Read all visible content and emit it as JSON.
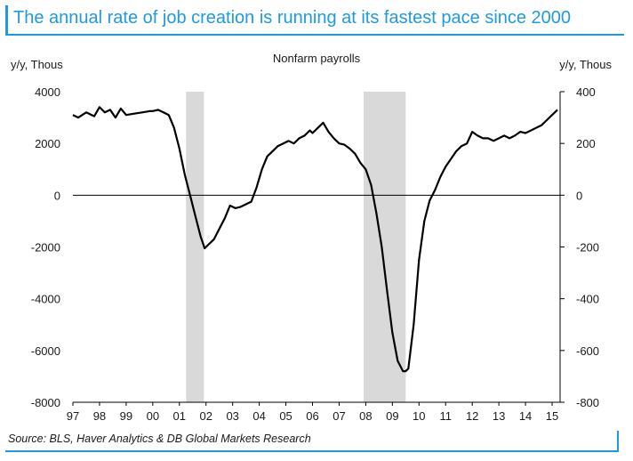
{
  "header": {
    "title": "The annual rate of job creation is running at its fastest pace since 2000"
  },
  "footer": {
    "source": "Source: BLS, Haver Analytics & DB Global Markets Research"
  },
  "colors": {
    "accent": "#1e9be0",
    "line": "#000000",
    "recession": "#d9d9d9"
  },
  "chart_data": {
    "type": "line",
    "title": "Nonfarm payrolls",
    "left_axis_label": "y/y, Thous",
    "right_axis_label": "y/y, Thous",
    "ylim_left": [
      -8000,
      4000
    ],
    "ylim_right": [
      -800,
      400
    ],
    "yticks_left": [
      "4000",
      "2000",
      "0",
      "-2000",
      "-4000",
      "-6000",
      "-8000"
    ],
    "yticks_right": [
      "400",
      "200",
      "0",
      "-200",
      "-400",
      "-600",
      "-800"
    ],
    "xlim": [
      1997.0,
      2015.3
    ],
    "xticks": [
      "97",
      "98",
      "99",
      "00",
      "01",
      "02",
      "03",
      "04",
      "05",
      "06",
      "07",
      "08",
      "09",
      "10",
      "11",
      "12",
      "13",
      "14",
      "15"
    ],
    "grid": false,
    "zero_line": true,
    "recessions": [
      [
        2001.25,
        2001.92
      ],
      [
        2007.92,
        2009.5
      ]
    ],
    "series": [
      {
        "x": [
          1997.0,
          1997.2,
          1997.5,
          1997.8,
          1998.0,
          1998.2,
          1998.4,
          1998.6,
          1998.8,
          1999.0,
          1999.3,
          1999.6,
          1999.9,
          2000.0,
          2000.2,
          2000.4,
          2000.6,
          2000.8,
          2001.0,
          2001.2,
          2001.4,
          2001.6,
          2001.8,
          2001.95,
          2002.1,
          2002.3,
          2002.5,
          2002.7,
          2002.9,
          2003.1,
          2003.3,
          2003.5,
          2003.7,
          2003.9,
          2004.1,
          2004.3,
          2004.5,
          2004.7,
          2004.9,
          2005.1,
          2005.3,
          2005.5,
          2005.7,
          2005.9,
          2006.0,
          2006.2,
          2006.4,
          2006.6,
          2006.8,
          2007.0,
          2007.2,
          2007.4,
          2007.6,
          2007.8,
          2008.0,
          2008.2,
          2008.4,
          2008.6,
          2008.8,
          2009.0,
          2009.2,
          2009.4,
          2009.5,
          2009.6,
          2009.8,
          2010.0,
          2010.2,
          2010.4,
          2010.6,
          2010.8,
          2011.0,
          2011.2,
          2011.4,
          2011.6,
          2011.8,
          2012.0,
          2012.2,
          2012.4,
          2012.6,
          2012.8,
          2013.0,
          2013.2,
          2013.4,
          2013.6,
          2013.8,
          2014.0,
          2014.2,
          2014.4,
          2014.6,
          2014.8,
          2015.0,
          2015.2
        ],
        "values": [
          3100,
          3000,
          3200,
          3050,
          3400,
          3200,
          3300,
          3000,
          3350,
          3100,
          3150,
          3200,
          3250,
          3250,
          3300,
          3200,
          3100,
          2600,
          1800,
          800,
          0,
          -800,
          -1600,
          -2050,
          -1900,
          -1700,
          -1300,
          -900,
          -400,
          -500,
          -450,
          -350,
          -250,
          300,
          1000,
          1500,
          1700,
          1900,
          2000,
          2100,
          2000,
          2200,
          2300,
          2500,
          2400,
          2600,
          2800,
          2450,
          2200,
          2000,
          1950,
          1800,
          1600,
          1250,
          1000,
          400,
          -700,
          -2000,
          -3700,
          -5300,
          -6400,
          -6800,
          -6800,
          -6700,
          -5000,
          -2500,
          -1000,
          -200,
          200,
          700,
          1100,
          1400,
          1700,
          1900,
          2000,
          2450,
          2300,
          2200,
          2200,
          2100,
          2200,
          2300,
          2200,
          2300,
          2450,
          2400,
          2500,
          2600,
          2700,
          2900,
          3100,
          3300
        ]
      }
    ]
  }
}
